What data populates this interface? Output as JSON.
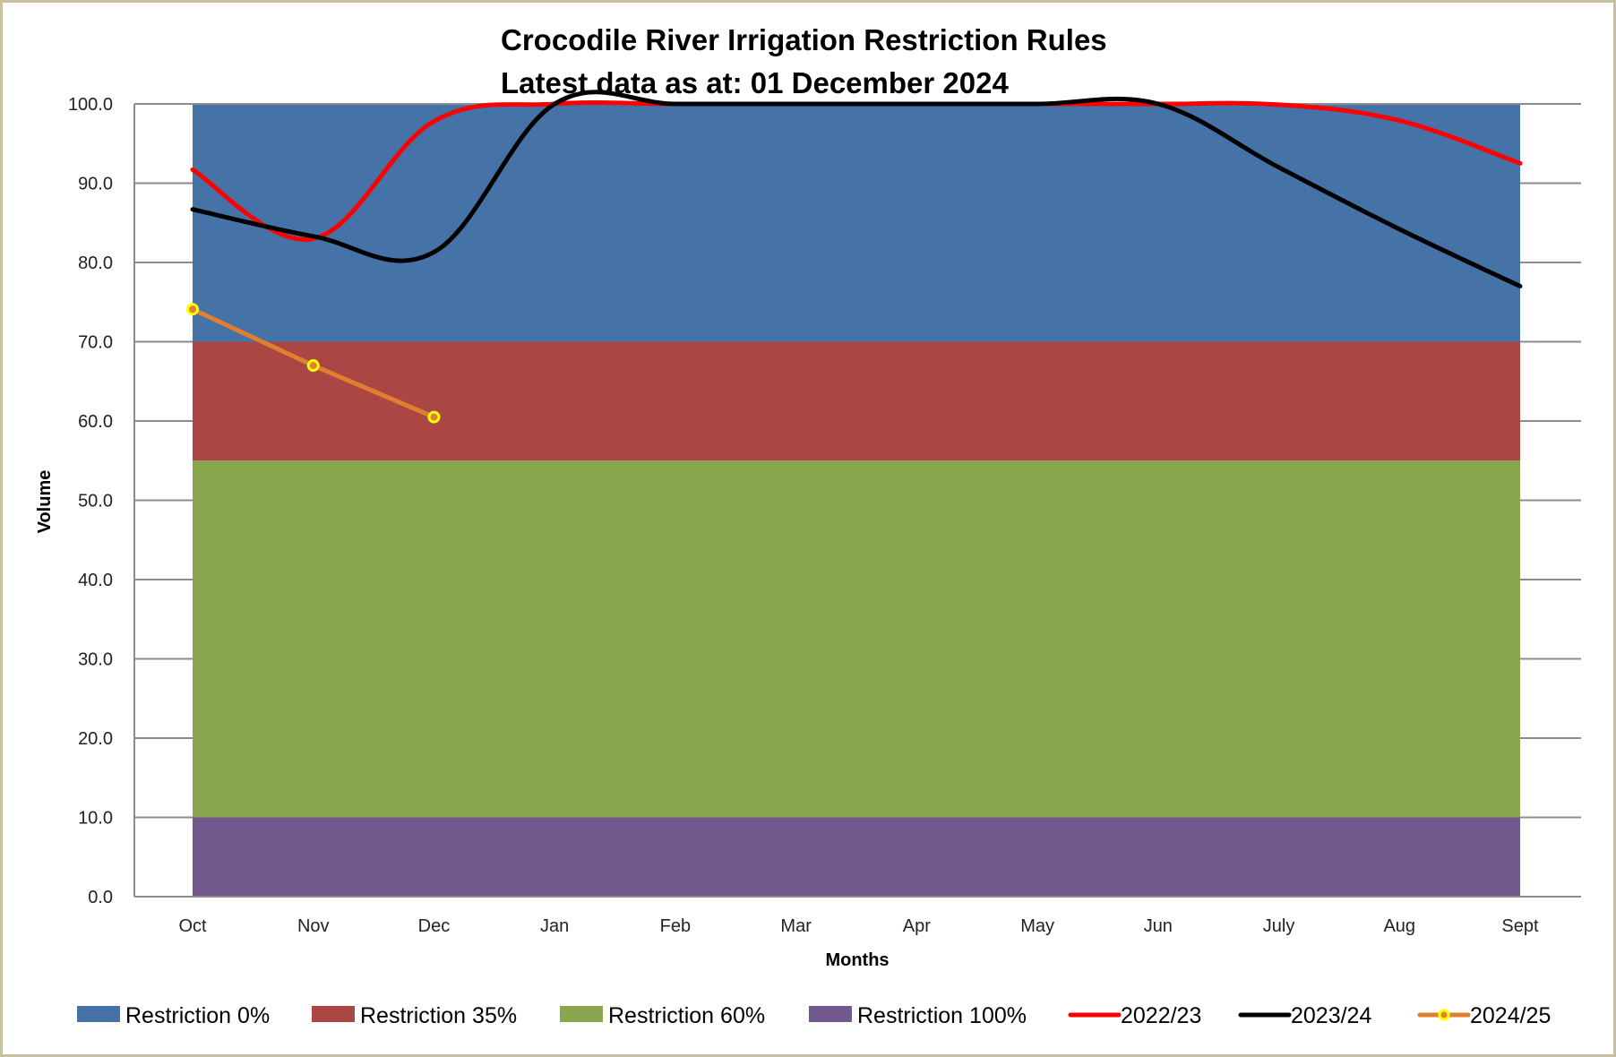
{
  "chart_data": {
    "type": "area",
    "title": "Crocodile River Irrigation Restriction Rules",
    "subtitle": "Latest data as at: 01 December 2024",
    "xlabel": "Months",
    "ylabel": "Volume",
    "ylim": [
      0,
      100
    ],
    "yticks": [
      "0.0",
      "10.0",
      "20.0",
      "30.0",
      "40.0",
      "50.0",
      "60.0",
      "70.0",
      "80.0",
      "90.0",
      "100.0"
    ],
    "grid": true,
    "legend_position": "bottom",
    "categories": [
      "Oct",
      "Nov",
      "Dec",
      "Jan",
      "Feb",
      "Mar",
      "Apr",
      "May",
      "Jun",
      "July",
      "Aug",
      "Sept"
    ],
    "bands": [
      {
        "name": "Restriction 100%",
        "from": 0,
        "to": 10,
        "color": "#71598e"
      },
      {
        "name": "Restriction 60%",
        "from": 10,
        "to": 55,
        "color": "#89a54e"
      },
      {
        "name": "Restriction 35%",
        "from": 55,
        "to": 70,
        "color": "#aa4643"
      },
      {
        "name": "Restriction 0%",
        "from": 70,
        "to": 100,
        "color": "#4572a7"
      }
    ],
    "series": [
      {
        "name": "2022/23",
        "color": "#ff0000",
        "marker": false,
        "values": [
          91.7,
          83.0,
          97.8,
          100.0,
          100.0,
          100.0,
          100.0,
          100.0,
          100.0,
          99.9,
          97.9,
          92.5
        ]
      },
      {
        "name": "2023/24",
        "color": "#000000",
        "marker": false,
        "values": [
          86.7,
          83.3,
          81.3,
          100.0,
          100.0,
          100.0,
          100.0,
          100.0,
          100.0,
          92.0,
          84.2,
          77.0
        ]
      },
      {
        "name": "2024/25",
        "color": "#e07f2f",
        "marker": true,
        "marker_color": "#ffff00",
        "values": [
          74.1,
          67.0,
          60.5
        ]
      }
    ],
    "legend": [
      {
        "label": "Restriction 0%",
        "kind": "box",
        "color": "#4572a7"
      },
      {
        "label": "Restriction 35%",
        "kind": "box",
        "color": "#aa4643"
      },
      {
        "label": "Restriction 60%",
        "kind": "box",
        "color": "#89a54e"
      },
      {
        "label": "Restriction 100%",
        "kind": "box",
        "color": "#71598e"
      },
      {
        "label": "2022/23",
        "kind": "line",
        "color": "#ff0000"
      },
      {
        "label": "2023/24",
        "kind": "line",
        "color": "#000000"
      },
      {
        "label": "2024/25",
        "kind": "line-marker",
        "color": "#e07f2f",
        "marker_color": "#ffff00"
      }
    ]
  }
}
